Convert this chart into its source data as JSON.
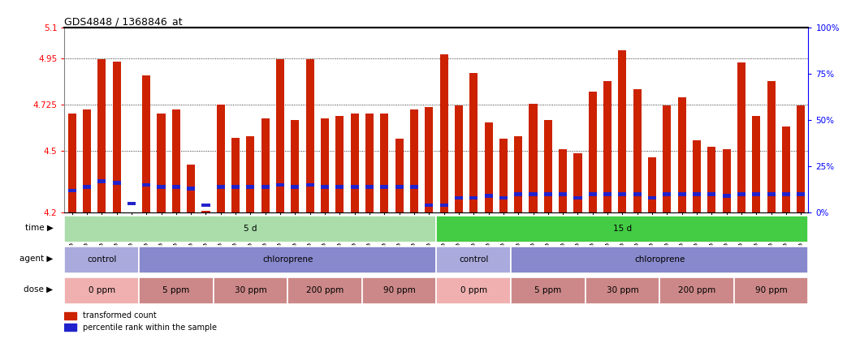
{
  "title": "GDS4848 / 1368846_at",
  "samples": [
    "GSM1001824",
    "GSM1001825",
    "GSM1001826",
    "GSM1001827",
    "GSM1001828",
    "GSM1001854",
    "GSM1001855",
    "GSM1001856",
    "GSM1001857",
    "GSM1001858",
    "GSM1001844",
    "GSM1001845",
    "GSM1001846",
    "GSM1001847",
    "GSM1001848",
    "GSM1001834",
    "GSM1001835",
    "GSM1001836",
    "GSM1001837",
    "GSM1001838",
    "GSM1001864",
    "GSM1001865",
    "GSM1001866",
    "GSM1001867",
    "GSM1001868",
    "GSM1001819",
    "GSM1001820",
    "GSM1001821",
    "GSM1001822",
    "GSM1001823",
    "GSM1001849",
    "GSM1001850",
    "GSM1001851",
    "GSM1001852",
    "GSM1001853",
    "GSM1001839",
    "GSM1001840",
    "GSM1001841",
    "GSM1001842",
    "GSM1001843",
    "GSM1001829",
    "GSM1001830",
    "GSM1001831",
    "GSM1001832",
    "GSM1001833",
    "GSM1001859",
    "GSM1001860",
    "GSM1001861",
    "GSM1001862",
    "GSM1001863"
  ],
  "red_values": [
    4.68,
    4.7,
    4.945,
    4.935,
    4.2,
    4.865,
    4.68,
    4.7,
    4.435,
    4.21,
    4.725,
    4.565,
    4.57,
    4.66,
    4.945,
    4.65,
    4.945,
    4.66,
    4.67,
    4.68,
    4.68,
    4.68,
    4.56,
    4.7,
    4.715,
    4.97,
    4.72,
    4.88,
    4.64,
    4.56,
    4.57,
    4.73,
    4.65,
    4.51,
    4.49,
    4.79,
    4.84,
    4.99,
    4.8,
    4.47,
    4.72,
    4.76,
    4.55,
    4.52,
    4.51,
    4.93,
    4.67,
    4.84,
    4.62,
    4.72
  ],
  "blue_pct": [
    12,
    14,
    17,
    16,
    5,
    15,
    14,
    14,
    13,
    4,
    14,
    14,
    14,
    14,
    15,
    14,
    15,
    14,
    14,
    14,
    14,
    14,
    14,
    14,
    4,
    4,
    8,
    8,
    9,
    8,
    10,
    10,
    10,
    10,
    8,
    10,
    10,
    10,
    10,
    8,
    10,
    10,
    10,
    10,
    9,
    10,
    10,
    10,
    10,
    10
  ],
  "y_min": 4.2,
  "y_max": 5.1,
  "y_ticks_left": [
    4.2,
    4.5,
    4.725,
    4.95,
    5.1
  ],
  "dotted_lines": [
    4.5,
    4.725,
    4.95
  ],
  "bar_color": "#cc2200",
  "blue_color": "#2222cc",
  "plot_bg": "#ffffff",
  "time_spans": [
    {
      "text": "5 d",
      "start": 0,
      "end": 25,
      "color": "#aaddaa"
    },
    {
      "text": "15 d",
      "start": 25,
      "end": 50,
      "color": "#44cc44"
    }
  ],
  "agent_spans": [
    {
      "text": "control",
      "start": 0,
      "end": 5,
      "color": "#aaaadd"
    },
    {
      "text": "chloroprene",
      "start": 5,
      "end": 25,
      "color": "#8888cc"
    },
    {
      "text": "control",
      "start": 25,
      "end": 30,
      "color": "#aaaadd"
    },
    {
      "text": "chloroprene",
      "start": 30,
      "end": 50,
      "color": "#8888cc"
    }
  ],
  "dose_spans": [
    {
      "text": "0 ppm",
      "start": 0,
      "end": 5,
      "color": "#f0b0b0"
    },
    {
      "text": "5 ppm",
      "start": 5,
      "end": 10,
      "color": "#cc8888"
    },
    {
      "text": "30 ppm",
      "start": 10,
      "end": 15,
      "color": "#cc8888"
    },
    {
      "text": "200 ppm",
      "start": 15,
      "end": 20,
      "color": "#cc8888"
    },
    {
      "text": "90 ppm",
      "start": 20,
      "end": 25,
      "color": "#cc8888"
    },
    {
      "text": "0 ppm",
      "start": 25,
      "end": 30,
      "color": "#f0b0b0"
    },
    {
      "text": "5 ppm",
      "start": 30,
      "end": 35,
      "color": "#cc8888"
    },
    {
      "text": "30 ppm",
      "start": 35,
      "end": 40,
      "color": "#cc8888"
    },
    {
      "text": "200 ppm",
      "start": 40,
      "end": 45,
      "color": "#cc8888"
    },
    {
      "text": "90 ppm",
      "start": 45,
      "end": 50,
      "color": "#cc8888"
    }
  ],
  "legend_red": "transformed count",
  "legend_blue": "percentile rank within the sample"
}
